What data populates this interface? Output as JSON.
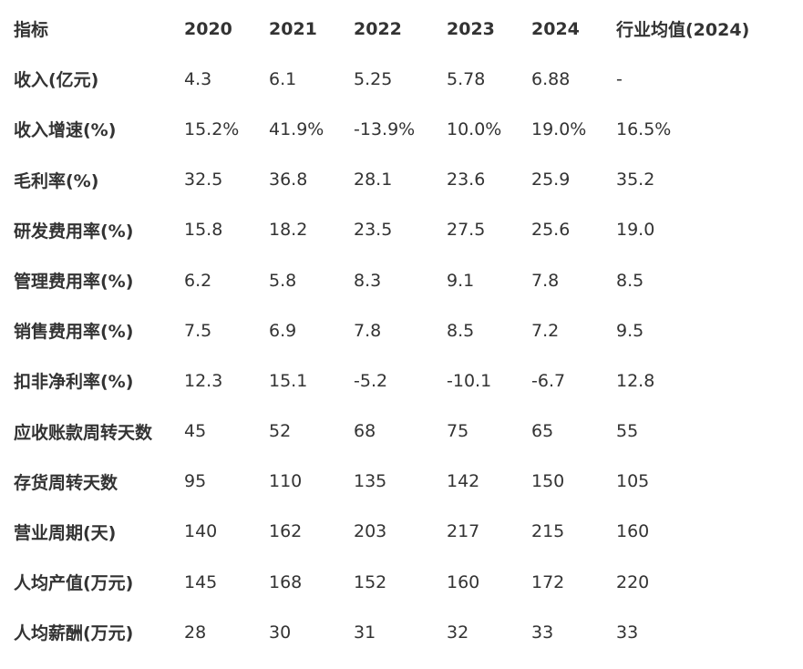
{
  "table": {
    "header": [
      "指标",
      "2020",
      "2021",
      "2022",
      "2023",
      "2024",
      "行业均值(2024)"
    ],
    "rows": [
      {
        "label": "收入(亿元)",
        "values": [
          "4.3",
          "6.1",
          "5.25",
          "5.78",
          "6.88",
          "-"
        ]
      },
      {
        "label": "收入增速(%)",
        "values": [
          "15.2%",
          "41.9%",
          "-13.9%",
          "10.0%",
          "19.0%",
          "16.5%"
        ]
      },
      {
        "label": "毛利率(%)",
        "values": [
          "32.5",
          "36.8",
          "28.1",
          "23.6",
          "25.9",
          "35.2"
        ]
      },
      {
        "label": "研发费用率(%)",
        "values": [
          "15.8",
          "18.2",
          "23.5",
          "27.5",
          "25.6",
          "19.0"
        ]
      },
      {
        "label": "管理费用率(%)",
        "values": [
          "6.2",
          "5.8",
          "8.3",
          "9.1",
          "7.8",
          "8.5"
        ]
      },
      {
        "label": "销售费用率(%)",
        "values": [
          "7.5",
          "6.9",
          "7.8",
          "8.5",
          "7.2",
          "9.5"
        ]
      },
      {
        "label": "扣非净利率(%)",
        "values": [
          "12.3",
          "15.1",
          "-5.2",
          "-10.1",
          "-6.7",
          "12.8"
        ]
      },
      {
        "label": "应收账款周转天数",
        "values": [
          "45",
          "52",
          "68",
          "75",
          "65",
          "55"
        ]
      },
      {
        "label": "存货周转天数",
        "values": [
          "95",
          "110",
          "135",
          "142",
          "150",
          "105"
        ]
      },
      {
        "label": "营业周期(天)",
        "values": [
          "140",
          "162",
          "203",
          "217",
          "215",
          "160"
        ]
      },
      {
        "label": "人均产值(万元)",
        "values": [
          "145",
          "168",
          "152",
          "160",
          "172",
          "220"
        ]
      },
      {
        "label": "人均薪酬(万元)",
        "values": [
          "28",
          "30",
          "31",
          "32",
          "33",
          "33"
        ]
      }
    ]
  }
}
